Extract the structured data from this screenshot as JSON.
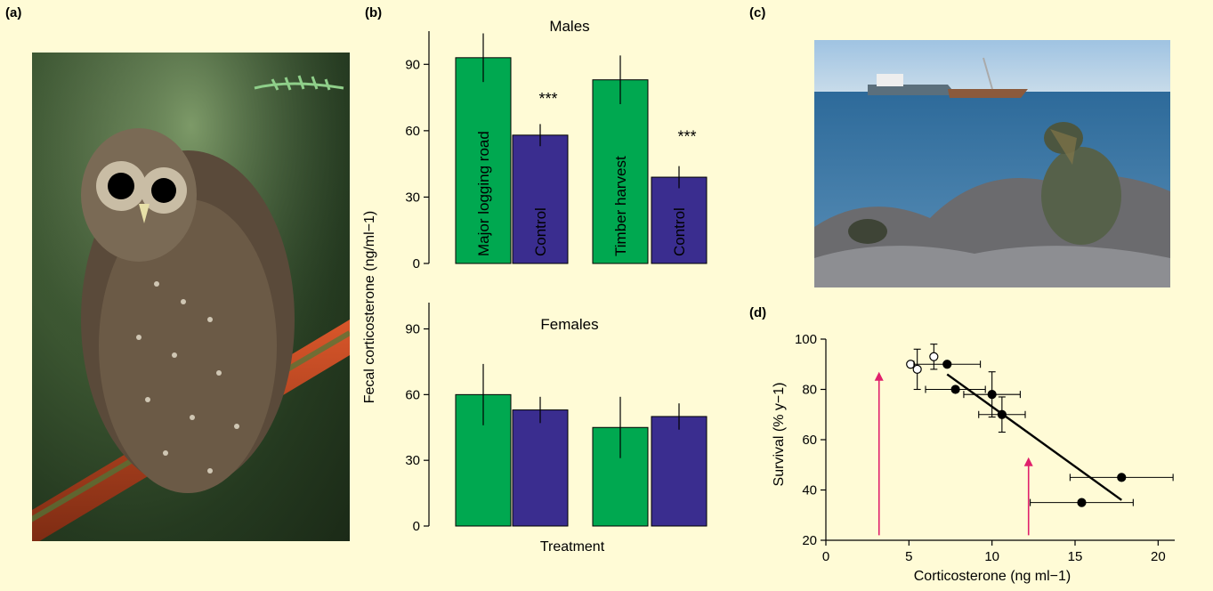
{
  "panels": {
    "a": "(a)",
    "b": "(b)",
    "c": "(c)",
    "d": "(d)"
  },
  "photos": {
    "owl": "spotted-owl-photo",
    "iguana": "marine-iguana-photo"
  },
  "chart_data": [
    {
      "type": "bar",
      "title": "Males",
      "categories": [
        "Major logging road",
        "Control",
        "Timber harvest",
        "Control"
      ],
      "values": [
        93,
        58,
        83,
        39
      ],
      "errors": [
        11,
        5,
        11,
        5
      ],
      "bar_labels": [
        "Major logging road",
        "Control",
        "Timber harvest",
        "Control"
      ],
      "significance": [
        "***",
        "***"
      ],
      "ylim": [
        0,
        105
      ],
      "yticks": [
        0,
        30,
        60,
        90
      ],
      "colors": [
        "#00a850",
        "#3a2d8f",
        "#00a850",
        "#3a2d8f"
      ]
    },
    {
      "type": "bar",
      "title": "Females",
      "categories": [
        "Major logging road",
        "Control",
        "Timber harvest",
        "Control"
      ],
      "values": [
        60,
        53,
        45,
        50
      ],
      "errors": [
        14,
        6,
        14,
        6
      ],
      "ylim": [
        0,
        102
      ],
      "yticks": [
        0,
        30,
        60,
        90
      ],
      "xlabel": "Treatment",
      "shared_ylabel": "Fecal corticosterone (ng/ml−1)",
      "colors": [
        "#00a850",
        "#3a2d8f",
        "#00a850",
        "#3a2d8f"
      ]
    },
    {
      "type": "scatter",
      "xlabel": "Corticosterone (ng ml−1)",
      "ylabel": "Survival (% y−1)",
      "xlim": [
        0,
        21
      ],
      "ylim": [
        20,
        100
      ],
      "xticks": [
        0,
        5,
        10,
        15,
        20
      ],
      "yticks": [
        20,
        40,
        60,
        80,
        100
      ],
      "series": [
        {
          "marker": "open",
          "points": [
            {
              "x": 5.1,
              "y": 90,
              "xerr": 0,
              "yerr": 0
            },
            {
              "x": 5.5,
              "y": 88,
              "xerr": 0,
              "yerr": 8
            },
            {
              "x": 6.5,
              "y": 93,
              "xerr": 0,
              "yerr": 5
            }
          ]
        },
        {
          "marker": "filled",
          "points": [
            {
              "x": 7.3,
              "y": 90,
              "xerr": 2.0,
              "yerr": 0
            },
            {
              "x": 7.8,
              "y": 80,
              "xerr": 1.8,
              "yerr": 0
            },
            {
              "x": 10.0,
              "y": 78,
              "xerr": 1.7,
              "yerr": 9
            },
            {
              "x": 10.6,
              "y": 70,
              "xerr": 1.4,
              "yerr": 7
            },
            {
              "x": 17.8,
              "y": 45,
              "xerr": 3.1,
              "yerr": 0
            },
            {
              "x": 15.4,
              "y": 35,
              "xerr": 3.1,
              "yerr": 0
            }
          ]
        }
      ],
      "fit_line": [
        [
          7.3,
          86
        ],
        [
          17.8,
          36
        ]
      ],
      "arrows": [
        {
          "x": 3.2,
          "from_y": 22,
          "to_y": 87
        },
        {
          "x": 12.2,
          "from_y": 22,
          "to_y": 53
        }
      ],
      "arrow_color": "#e0206c"
    }
  ]
}
